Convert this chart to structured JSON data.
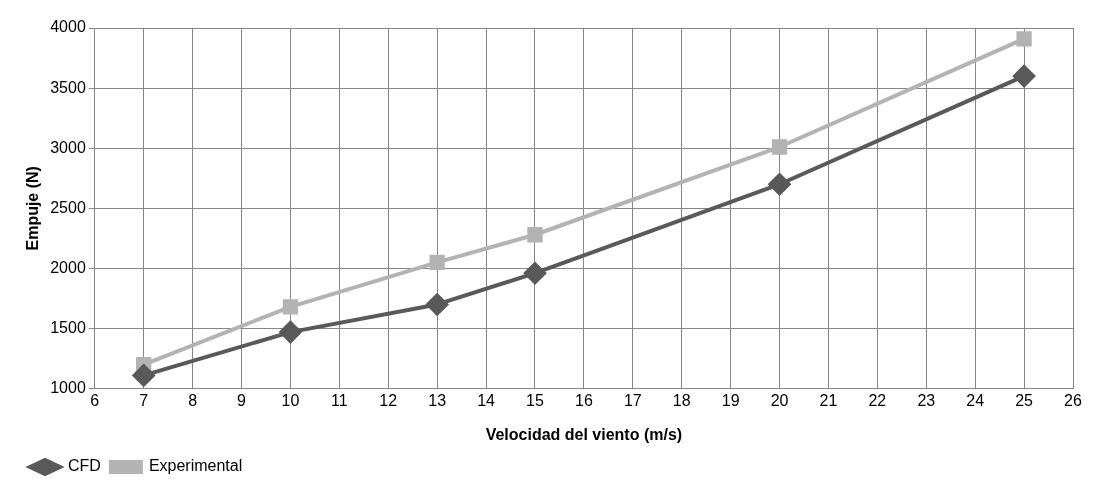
{
  "chart_data": {
    "type": "line",
    "xlabel": "Velocidad del viento (m/s)",
    "ylabel": "Empuje (N)",
    "xlim": [
      6,
      26
    ],
    "xticks": [
      6,
      7,
      8,
      9,
      10,
      11,
      12,
      13,
      14,
      15,
      16,
      17,
      18,
      19,
      20,
      21,
      22,
      23,
      24,
      25,
      26
    ],
    "ylim": [
      1000,
      4000
    ],
    "yticks": [
      1000,
      1500,
      2000,
      2500,
      3000,
      3500,
      4000
    ],
    "grid": true,
    "legend": "bottom left",
    "series": [
      {
        "name": "CFD",
        "color": "#595959",
        "marker": "diamond",
        "x": [
          7,
          10,
          13,
          15,
          20,
          25
        ],
        "values": [
          1110,
          1470,
          1700,
          1960,
          2700,
          3600
        ]
      },
      {
        "name": "Experimental",
        "color": "#b3b3b3",
        "marker": "square",
        "x": [
          7,
          10,
          13,
          15,
          20,
          25
        ],
        "values": [
          1200,
          1680,
          2050,
          2280,
          3010,
          3910
        ]
      }
    ]
  }
}
